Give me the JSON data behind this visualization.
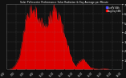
{
  "title": "Solar PV/Inverter Performance Solar Radiation & Day Average per Minute",
  "bg_color": "#111111",
  "plot_bg_color": "#111111",
  "grid_color": "#888888",
  "area_color": "#dd0000",
  "line_color": "#ff2222",
  "legend_labels": [
    "LivePV kWh",
    "Avg/Day kWh"
  ],
  "legend_colors": [
    "#4444ff",
    "#ff0000"
  ],
  "tick_color": "#ffffff",
  "ylim": [
    0,
    7
  ],
  "yticks": [
    1,
    2,
    3,
    4,
    5,
    6,
    7
  ],
  "num_points": 200,
  "y_values": [
    0,
    0,
    0,
    0,
    0,
    0,
    0.02,
    0.03,
    0.05,
    0.08,
    0.1,
    0.15,
    0.2,
    0.28,
    0.35,
    0.42,
    0.5,
    0.6,
    0.72,
    0.85,
    1.0,
    1.2,
    1.4,
    1.6,
    1.8,
    2.1,
    2.4,
    2.7,
    3.1,
    3.5,
    3.9,
    4.2,
    4.5,
    4.7,
    4.9,
    5.1,
    5.3,
    5.5,
    5.6,
    5.7,
    5.8,
    5.9,
    6.0,
    6.1,
    6.2,
    6.3,
    6.4,
    6.5,
    6.55,
    6.6,
    6.5,
    6.3,
    6.1,
    5.9,
    5.8,
    5.7,
    5.6,
    5.5,
    5.4,
    5.3,
    5.2,
    5.1,
    5.0,
    4.9,
    4.8,
    4.7,
    4.6,
    4.5,
    4.4,
    4.3,
    4.5,
    4.7,
    4.9,
    5.1,
    5.3,
    5.5,
    5.6,
    5.7,
    5.8,
    5.9,
    6.0,
    6.1,
    6.2,
    6.1,
    6.0,
    5.9,
    5.8,
    5.7,
    5.6,
    5.5,
    5.4,
    5.3,
    5.2,
    5.0,
    4.8,
    4.6,
    4.4,
    4.2,
    4.0,
    3.8,
    3.6,
    3.4,
    3.2,
    3.0,
    2.8,
    2.6,
    2.4,
    2.2,
    2.0,
    1.8,
    1.6,
    1.4,
    1.2,
    1.0,
    0.8,
    0.7,
    0.6,
    0.5,
    0.42,
    0.35,
    0.4,
    0.5,
    0.6,
    0.7,
    0.75,
    0.8,
    0.85,
    0.9,
    0.95,
    1.0,
    1.05,
    1.1,
    1.15,
    1.2,
    1.1,
    1.0,
    0.9,
    0.8,
    0.7,
    0.6,
    0.5,
    0.4,
    0.35,
    0.3,
    0.25,
    0.2,
    0.18,
    0.16,
    0.14,
    0.12,
    0.1,
    0.09,
    0.08,
    0.07,
    0.06,
    0.05,
    0.04,
    0.03,
    0.02,
    0.02,
    0.02,
    0.03,
    0.04,
    0.05,
    0.06,
    0.07,
    0.08,
    0.09,
    0.1,
    0.09,
    0.08,
    0.07,
    0.06,
    0.05,
    0.04,
    0.03,
    0.02,
    0.01,
    0.01,
    0,
    0,
    0,
    0,
    0,
    0,
    0,
    0,
    0,
    0,
    0,
    0,
    0,
    0,
    0,
    0,
    0,
    0,
    0,
    0,
    0
  ]
}
